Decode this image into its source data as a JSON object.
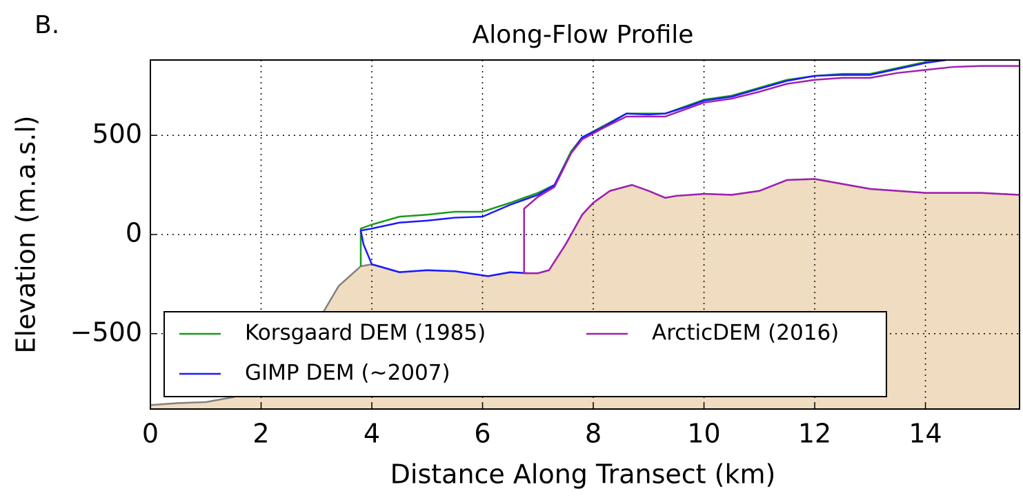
{
  "chart_data": {
    "type": "line",
    "panel_label": "B.",
    "title": "Along-Flow Profile",
    "x_label": "Distance Along Transect (km)",
    "y_label": "Elevation (m.a.s.l)",
    "xlim": [
      0,
      15.7
    ],
    "ylim": [
      -880,
      880
    ],
    "xticks": [
      0,
      2,
      4,
      6,
      8,
      10,
      12,
      14
    ],
    "yticks": [
      {
        "value": -500,
        "label": "−500"
      },
      0,
      500
    ],
    "grid": true,
    "legend": "lower left",
    "legend_columns": 2,
    "bed": {
      "color": "#808080",
      "fill": "#f0dcc0",
      "x": [
        0,
        0.5,
        1,
        1.5,
        2,
        2.5,
        3,
        3.4,
        3.8,
        4.0,
        4.5,
        5,
        5.5,
        6.1,
        6.5,
        6.8,
        7.0,
        7.2,
        7.5,
        7.8,
        8,
        8.3,
        8.7,
        9,
        9.3,
        9.5,
        10,
        10.5,
        11,
        11.5,
        12,
        13,
        14,
        15,
        15.7
      ],
      "values": [
        -860,
        -850,
        -845,
        -820,
        -760,
        -640,
        -450,
        -260,
        -160,
        -150,
        -190,
        -180,
        -185,
        -210,
        -190,
        -195,
        -195,
        -180,
        -50,
        100,
        160,
        220,
        250,
        220,
        185,
        195,
        205,
        200,
        220,
        275,
        280,
        230,
        210,
        210,
        200
      ]
    },
    "series": [
      {
        "name": "Korsgaard DEM (1985)",
        "color": "#1a9a1a",
        "x": [
          3.8,
          3.8,
          4.0,
          4.5,
          5.0,
          5.5,
          6.0,
          6.5,
          7.0,
          7.3,
          7.6,
          7.8,
          8.2,
          8.6,
          9.0,
          9.3,
          9.7,
          10.0,
          10.5,
          11.0,
          11.5,
          12.0,
          12.5,
          13.0,
          13.5,
          14.0,
          14.5,
          15.0
        ],
        "values": [
          -160,
          30,
          50,
          90,
          100,
          115,
          115,
          160,
          210,
          250,
          420,
          490,
          550,
          610,
          610,
          610,
          650,
          680,
          700,
          740,
          780,
          800,
          810,
          810,
          840,
          870,
          890,
          900
        ]
      },
      {
        "name": "GIMP DEM (~2007)",
        "color": "#1a1aff",
        "x": [
          6.8,
          6.5,
          6.1,
          5.5,
          5.0,
          4.5,
          4.0,
          3.85,
          3.8,
          4.0,
          4.5,
          5.0,
          5.5,
          6.0,
          6.5,
          7.0,
          7.3,
          7.6,
          7.8,
          8.2,
          8.6,
          9.0,
          9.3,
          9.7,
          10.0,
          10.5,
          11.0,
          11.5,
          12.0,
          12.5,
          13.0,
          13.5,
          14.0,
          14.5,
          15.0
        ],
        "values": [
          -195,
          -190,
          -210,
          -185,
          -180,
          -190,
          -150,
          -50,
          20,
          30,
          60,
          70,
          85,
          90,
          150,
          200,
          250,
          410,
          490,
          545,
          610,
          605,
          610,
          645,
          675,
          695,
          735,
          775,
          800,
          805,
          805,
          835,
          865,
          885,
          900
        ]
      },
      {
        "name": "ArcticDEM (2016)",
        "color": "#a020b0",
        "x": [
          15.7,
          15,
          14,
          13,
          12,
          11.5,
          11,
          10.5,
          10,
          9.5,
          9.3,
          9,
          8.7,
          8.3,
          8,
          7.8,
          7.5,
          7.2,
          7.0,
          6.75,
          6.75,
          7.0,
          7.3,
          7.6,
          7.8,
          8.2,
          8.6,
          9.0,
          9.3,
          9.7,
          10.0,
          10.5,
          11.0,
          11.5,
          12.0,
          12.5,
          13.0,
          13.5,
          14.0,
          14.5,
          15.0,
          15.7
        ],
        "values": [
          200,
          210,
          210,
          230,
          280,
          275,
          220,
          200,
          205,
          195,
          185,
          220,
          250,
          220,
          160,
          100,
          -50,
          -180,
          -195,
          -195,
          130,
          190,
          240,
          410,
          480,
          540,
          595,
          595,
          595,
          635,
          665,
          685,
          720,
          760,
          780,
          790,
          790,
          815,
          830,
          845,
          850,
          850
        ]
      }
    ]
  }
}
